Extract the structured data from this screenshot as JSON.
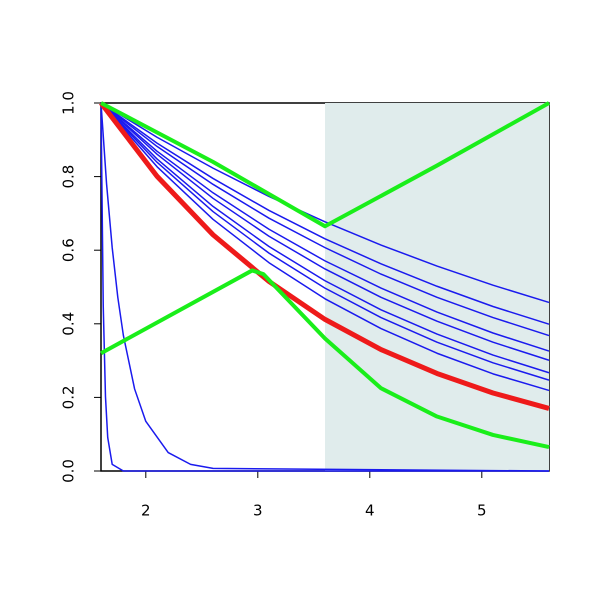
{
  "chart_data": {
    "type": "line",
    "xlim": [
      1.6,
      5.6
    ],
    "ylim": [
      0,
      1
    ],
    "xticks": [
      2,
      3,
      4,
      5
    ],
    "yticks": [
      {
        "value": 0,
        "label": "0.0"
      },
      0.2,
      0.4,
      0.6,
      0.8,
      {
        "value": 1,
        "label": "1.0"
      }
    ],
    "shaded_region": {
      "x": [
        3.6,
        5.6
      ],
      "color": "#e0ecec"
    },
    "series": [
      {
        "color": "#1a1aee",
        "linewidth": 1.5,
        "x": [
          1.6,
          2.1,
          2.6,
          3.1,
          3.6,
          4.1,
          4.6,
          5.1,
          5.6
        ],
        "values": [
          1,
          0.907,
          0.823,
          0.746,
          0.677,
          0.614,
          0.557,
          0.505,
          0.458
        ]
      },
      {
        "color": "#1a1aee",
        "linewidth": 1.5,
        "x": [
          1.6,
          2.1,
          2.6,
          3.1,
          3.6,
          4.1,
          4.6,
          5.1,
          5.6
        ],
        "values": [
          1,
          0.891,
          0.795,
          0.708,
          0.631,
          0.563,
          0.502,
          0.447,
          0.399
        ]
      },
      {
        "color": "#1a1aee",
        "linewidth": 1.5,
        "x": [
          1.6,
          2.1,
          2.6,
          3.1,
          3.6,
          4.1,
          4.6,
          5.1,
          5.6
        ],
        "values": [
          1,
          0.882,
          0.779,
          0.687,
          0.607,
          0.535,
          0.472,
          0.417,
          0.368
        ]
      },
      {
        "color": "#1a1aee",
        "linewidth": 1.5,
        "x": [
          1.6,
          2.1,
          2.6,
          3.1,
          3.6,
          4.1,
          4.6,
          5.1,
          5.6
        ],
        "values": [
          1,
          0.869,
          0.756,
          0.657,
          0.571,
          0.497,
          0.432,
          0.375,
          0.326
        ]
      },
      {
        "color": "#1a1aee",
        "linewidth": 1.5,
        "x": [
          1.6,
          2.1,
          2.6,
          3.1,
          3.6,
          4.1,
          4.6,
          5.1,
          5.6
        ],
        "values": [
          1,
          0.861,
          0.741,
          0.638,
          0.549,
          0.472,
          0.407,
          0.35,
          0.301
        ]
      },
      {
        "color": "#1a1aee",
        "linewidth": 1.5,
        "x": [
          1.6,
          2.1,
          2.6,
          3.1,
          3.6,
          4.1,
          4.6,
          5.1,
          5.6
        ],
        "values": [
          1,
          0.848,
          0.719,
          0.61,
          0.517,
          0.438,
          0.372,
          0.315,
          0.267
        ]
      },
      {
        "color": "#1a1aee",
        "linewidth": 1.5,
        "x": [
          1.6,
          2.1,
          2.6,
          3.1,
          3.6,
          4.1,
          4.6,
          5.1,
          5.6
        ],
        "values": [
          1,
          0.839,
          0.705,
          0.592,
          0.497,
          0.417,
          0.35,
          0.294,
          0.247
        ]
      },
      {
        "color": "#1a1aee",
        "linewidth": 1.5,
        "x": [
          1.6,
          2.1,
          2.6,
          3.1,
          3.6,
          4.1,
          4.6,
          5.1,
          5.6
        ],
        "values": [
          1,
          0.827,
          0.684,
          0.566,
          0.468,
          0.387,
          0.32,
          0.264,
          0.219
        ]
      },
      {
        "color": "#1a1aee",
        "linewidth": 1.5,
        "x": [
          1.6,
          1.65,
          1.7,
          1.75,
          1.8,
          1.9,
          2.0,
          2.2,
          2.4,
          2.6,
          5.6
        ],
        "values": [
          1,
          0.779,
          0.607,
          0.472,
          0.368,
          0.223,
          0.135,
          0.05,
          0.018,
          0.007,
          0
        ]
      },
      {
        "color": "#1a1aee",
        "linewidth": 1.5,
        "x": [
          1.6,
          1.62,
          1.64,
          1.66,
          1.7,
          1.8,
          5.6
        ],
        "values": [
          1,
          0.449,
          0.202,
          0.091,
          0.018,
          0,
          0
        ]
      },
      {
        "color": "#ee1a1a",
        "linewidth": 5,
        "x": [
          1.6,
          2.1,
          2.6,
          3.1,
          3.6,
          4.1,
          4.6,
          5.1,
          5.6
        ],
        "values": [
          1,
          0.801,
          0.642,
          0.515,
          0.412,
          0.33,
          0.265,
          0.212,
          0.17
        ]
      },
      {
        "color": "#1aee1a",
        "linewidth": 4,
        "x": [
          1.6,
          2.6,
          3.6,
          4.6,
          5.6
        ],
        "values": [
          1,
          0.84,
          0.665,
          0.83,
          1
        ]
      },
      {
        "color": "#1aee1a",
        "linewidth": 4,
        "x": [
          1.6,
          2.95,
          3.05,
          3.6,
          4.1,
          4.6,
          5.1,
          5.6
        ],
        "values": [
          0.32,
          0.545,
          0.535,
          0.36,
          0.225,
          0.148,
          0.098,
          0.065
        ]
      }
    ]
  }
}
